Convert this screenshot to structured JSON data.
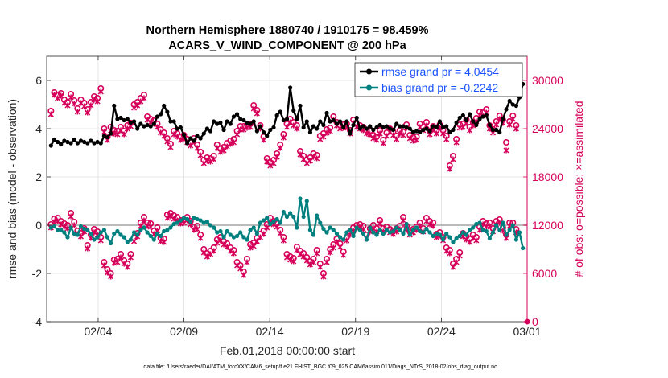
{
  "chart_data": {
    "type": "line",
    "title_line1": "Northern Hemisphere 1880740 / 1910175 = 98.459%",
    "title_line2": "ACARS_V_WIND_COMPONENT @ 200 hPa",
    "xlabel": "Feb.01,2018 00:00:00 start",
    "ylabel_left": "rmse and bias (model - observation)",
    "ylabel_right": "# of obs: o=possible; ×=assimilated",
    "footer": "data file: /Users/raeder/DAI/ATM_forcXX/CAM6_setup/f.e21.FHIST_BGC.f09_025.CAM6assim.011/Diags_NTrS_2018-02/obs_diag_output.nc",
    "xlim": [
      0.75,
      28.75
    ],
    "ylim_left": [
      -4,
      7
    ],
    "ylim_right": [
      0,
      33000
    ],
    "x_ticks": [
      3.75,
      8.75,
      13.75,
      18.75,
      23.75,
      28.75
    ],
    "x_tick_labels": [
      "02/04",
      "02/09",
      "02/14",
      "02/19",
      "02/24",
      "03/01"
    ],
    "y_ticks_left": [
      -4,
      -2,
      0,
      2,
      4,
      6
    ],
    "y_tick_labels_left": [
      "-4",
      "-2",
      "0",
      "2",
      "4",
      "6"
    ],
    "y_ticks_right": [
      0,
      6000,
      12000,
      18000,
      24000,
      30000
    ],
    "y_tick_labels_right": [
      "0",
      "6000",
      "12000",
      "18000",
      "24000",
      "30000"
    ],
    "colors": {
      "rmse": "#000000",
      "bias": "#00807f",
      "obs": "#d6005a",
      "legend_text": "#1a53ff",
      "zero_line": "#bbbbbb",
      "grid": "#e0e0e0"
    },
    "series": [
      {
        "name": "rmse grand pr = 4.0454",
        "values": [
          3.3,
          3.55,
          3.45,
          3.35,
          3.5,
          3.45,
          3.4,
          3.55,
          3.4,
          3.5,
          3.45,
          3.4,
          3.5,
          3.4,
          3.45,
          3.4,
          3.7,
          3.65,
          3.8,
          4.95,
          4.4,
          4.45,
          4.35,
          4.4,
          4.25,
          4.3,
          4.0,
          4.2,
          4.1,
          4.15,
          4.1,
          4.2,
          4.5,
          4.6,
          4.95,
          4.7,
          4.3,
          4.3,
          4.0,
          4.05,
          3.75,
          3.4,
          3.6,
          3.5,
          3.7,
          3.6,
          3.8,
          4.0,
          3.9,
          4.3,
          4.2,
          4.25,
          3.95,
          4.3,
          4.2,
          4.5,
          4.6,
          4.4,
          4.35,
          4.25,
          4.2,
          4.3,
          3.9,
          4.1,
          3.85,
          3.7,
          3.95,
          4.05,
          4.55,
          4.7,
          4.35,
          4.4,
          5.7,
          4.75,
          4.4,
          4.95,
          4.05,
          4.3,
          3.85,
          4.1,
          4.0,
          4.3,
          4.15,
          4.65,
          4.3,
          4.35,
          4.2,
          4.3,
          4.05,
          4.3,
          3.8,
          4.15,
          4.45,
          4.0,
          4.1,
          4.0,
          4.1,
          3.95,
          4.05,
          4.15,
          4.05,
          4.1,
          4.0,
          3.95,
          4.2,
          4.1,
          4.1,
          4.05,
          4.0,
          3.85,
          3.9,
          3.85,
          3.95,
          4.0,
          3.9,
          4.1,
          4.05,
          4.3,
          4.05,
          4.1,
          3.85,
          3.95,
          4.25,
          4.45,
          4.55,
          4.35,
          4.6,
          4.3,
          4.15,
          4.4,
          4.5,
          4.55,
          4.15,
          3.95,
          3.95,
          3.85,
          4.4,
          4.8,
          5.15,
          5.0,
          4.95,
          5.3,
          5.85
        ]
      },
      {
        "name": "bias grand pr = -0.2242",
        "values": [
          -0.1,
          -0.05,
          -0.2,
          -0.2,
          -0.3,
          -0.5,
          -0.1,
          -0.35,
          -0.4,
          -0.05,
          -0.15,
          -0.2,
          -0.35,
          -0.6,
          -0.5,
          -0.3,
          -0.2,
          -0.5,
          -0.75,
          -0.35,
          -0.25,
          -0.4,
          -0.5,
          -0.7,
          -0.6,
          -0.3,
          -0.4,
          -0.2,
          -0.1,
          -0.3,
          -0.45,
          -0.6,
          -0.35,
          -0.45,
          -0.25,
          -0.2,
          -0.1,
          0.05,
          0.1,
          0.2,
          0.3,
          0.25,
          0.15,
          0.3,
          0.25,
          0.2,
          0.1,
          0.15,
          0.0,
          -0.1,
          -0.3,
          -0.25,
          -0.5,
          -0.25,
          -0.4,
          -0.5,
          -0.45,
          -0.3,
          -0.5,
          -0.6,
          -0.2,
          -0.1,
          -0.35,
          0.1,
          0.2,
          0.3,
          0.05,
          0.15,
          0.25,
          0.1,
          0.55,
          0.35,
          0.5,
          0.35,
          -0.1,
          1.1,
          0.35,
          1.0,
          -0.2,
          -0.4,
          0.4,
          0.1,
          -0.15,
          -0.3,
          -0.1,
          -0.2,
          -0.35,
          -0.5,
          -0.6,
          -0.3,
          -0.2,
          -0.45,
          -0.1,
          -0.2,
          -0.35,
          -0.6,
          -0.1,
          -0.3,
          -0.4,
          -0.2,
          -0.35,
          -0.2,
          -0.3,
          -0.25,
          -0.1,
          -0.2,
          -0.35,
          0.05,
          -0.4,
          -0.2,
          -0.1,
          -0.25,
          -0.3,
          -0.15,
          -0.3,
          -0.45,
          -0.35,
          -0.4,
          -0.6,
          -0.35,
          -0.5,
          -0.7,
          -0.55,
          -0.45,
          -0.3,
          -0.4,
          -0.2,
          -0.1,
          0.05,
          0.1,
          -0.2,
          -0.25,
          -0.55,
          -0.3,
          0.0,
          -0.2,
          0.1,
          -0.4,
          -0.2,
          0.0,
          -0.6,
          -0.3,
          -0.95
        ]
      }
    ],
    "obs_possible": [
      26200,
      28500,
      28200,
      28400,
      27600,
      27300,
      28300,
      27500,
      26500,
      27600,
      27200,
      26400,
      27300,
      28000,
      27800,
      29000,
      24000,
      23000,
      24200,
      23800,
      23700,
      24200,
      23700,
      24400,
      24700,
      27000,
      27300,
      27800,
      28200,
      25500,
      25200,
      25000,
      24600,
      23900,
      23500,
      22800,
      22100,
      23700,
      23400,
      23000,
      23200,
      22700,
      22300,
      22800,
      22000,
      21100,
      20100,
      20400,
      20300,
      20600,
      22000,
      21500,
      21700,
      22200,
      22500,
      22700,
      23700,
      24300,
      24300,
      24500,
      24600,
      26900,
      26300,
      24400,
      23000,
      20300,
      19800,
      20100,
      20900,
      22000,
      23300,
      24600,
      25200,
      24800,
      24400,
      21200,
      20600,
      20100,
      20400,
      20900,
      20700,
      23100,
      23400,
      23900,
      24100,
      25500,
      24800,
      24400,
      24500,
      24600,
      23800,
      25100,
      24600,
      24400,
      24200,
      23800,
      23700,
      23200,
      23000,
      23800,
      22600,
      23500,
      24000,
      23600,
      23100,
      23800,
      23600,
      24500,
      23200,
      22900,
      23000,
      24600,
      24200,
      24800,
      23700,
      24300,
      23800,
      24500,
      23800,
      23100,
      19400,
      20600,
      22700,
      24500,
      24600,
      25100,
      24200,
      24800,
      25300,
      26100,
      26000,
      26400,
      24400,
      23900,
      24900,
      25600,
      25100,
      22300,
      24900,
      25600,
      24400
    ],
    "obs_assimilated": [
      25800,
      28200,
      27800,
      28100,
      27200,
      26900,
      27900,
      27100,
      26100,
      27200,
      26800,
      26000,
      26900,
      27600,
      27400,
      28600,
      23600,
      22600,
      23800,
      23400,
      23300,
      23800,
      23300,
      24000,
      24300,
      26600,
      26900,
      27400,
      27800,
      25100,
      24800,
      24600,
      24200,
      23500,
      23100,
      22400,
      21700,
      23300,
      23000,
      22600,
      22800,
      22300,
      21900,
      22400,
      21600,
      20700,
      19700,
      20000,
      19900,
      20200,
      21600,
      21100,
      21300,
      21800,
      22100,
      22300,
      23300,
      23900,
      23900,
      24100,
      24200,
      26500,
      25900,
      24000,
      22600,
      19900,
      19400,
      19700,
      20500,
      21600,
      22900,
      24200,
      24800,
      24400,
      24000,
      20800,
      20200,
      19700,
      20000,
      20500,
      20300,
      22700,
      23000,
      23500,
      23700,
      25100,
      24400,
      24000,
      24100,
      24200,
      23400,
      24700,
      24200,
      24000,
      23800,
      23400,
      23300,
      22800,
      22600,
      23400,
      22200,
      23100,
      23600,
      23200,
      22700,
      23400,
      23200,
      24100,
      22800,
      22500,
      22600,
      24200,
      23800,
      24400,
      23300,
      23900,
      23400,
      24100,
      23400,
      22700,
      19000,
      20200,
      22300,
      24100,
      24200,
      24700,
      23800,
      24400,
      24900,
      25700,
      25600,
      26000,
      24000,
      23500,
      24500,
      25200,
      24700,
      21300,
      24500,
      25200,
      24000
    ],
    "bias_obs_possible": [
      12100,
      12800,
      12900,
      12500,
      12200,
      12000,
      13500,
      12400,
      11300,
      11000,
      11600,
      9500,
      10800,
      11500,
      11200,
      10500,
      7400,
      6500,
      6000,
      7700,
      7800,
      8400,
      7600,
      7200,
      8400,
      10400,
      11000,
      12300,
      13000,
      12300,
      12200,
      11300,
      11700,
      10400,
      10300,
      13300,
      13500,
      13200,
      13000,
      12600,
      12700,
      13000,
      12500,
      11800,
      11900,
      10800,
      9000,
      8500,
      8800,
      9200,
      10200,
      10500,
      10000,
      9700,
      9200,
      8900,
      7400,
      7000,
      6200,
      7800,
      9600,
      9800,
      10400,
      10900,
      11300,
      12100,
      12900,
      12500,
      12200,
      11400,
      10500,
      8400,
      8100,
      7900,
      9300,
      8800,
      8500,
      8000,
      7500,
      7800,
      8900,
      7200,
      6000,
      7800,
      9000,
      9600,
      10300,
      9700,
      8700,
      10500,
      11200,
      11700,
      12000,
      12100,
      11900,
      10800,
      11600,
      12000,
      11600,
      12600,
      11600,
      11800,
      11500,
      11300,
      11600,
      11900,
      13000,
      11900,
      11200,
      11500,
      11800,
      12300,
      11600,
      12900,
      12500,
      12300,
      10900,
      11100,
      10500,
      9200,
      8900,
      7200,
      7800,
      8600,
      11000,
      10600,
      10300,
      10800,
      10500,
      11800,
      12500,
      12200,
      12300,
      11600,
      12500,
      12700,
      11700,
      10800,
      12300,
      12300,
      11500
    ],
    "bias_obs_assimilated": [
      11700,
      12400,
      12500,
      12100,
      11800,
      11600,
      13100,
      12000,
      10900,
      10600,
      11200,
      9100,
      10400,
      11100,
      10800,
      10100,
      7000,
      6100,
      5600,
      7300,
      7400,
      8000,
      7200,
      6800,
      8000,
      10000,
      10600,
      11900,
      12600,
      11900,
      11800,
      10900,
      11300,
      10000,
      9900,
      12900,
      13100,
      12800,
      12600,
      12200,
      12300,
      12600,
      12100,
      11400,
      11500,
      10400,
      8600,
      8100,
      8400,
      8800,
      9800,
      10100,
      9600,
      9300,
      8800,
      8500,
      7000,
      6600,
      5800,
      7400,
      9200,
      9400,
      10000,
      10500,
      10900,
      11700,
      12500,
      12100,
      11800,
      11000,
      10100,
      8000,
      7700,
      7500,
      8900,
      8400,
      8100,
      7600,
      7100,
      7400,
      8500,
      6800,
      5600,
      7400,
      8600,
      9200,
      9900,
      9300,
      8300,
      10100,
      10800,
      11300,
      11600,
      11700,
      11500,
      10400,
      11200,
      11600,
      11200,
      12200,
      11200,
      11400,
      11100,
      10900,
      11200,
      11500,
      12600,
      11500,
      10800,
      11100,
      11400,
      11900,
      11200,
      12500,
      12100,
      11900,
      10500,
      10700,
      10100,
      8800,
      8500,
      6800,
      7400,
      8200,
      10600,
      10200,
      9900,
      10400,
      10100,
      11400,
      12100,
      11800,
      11900,
      11200,
      12100,
      12300,
      11300,
      10400,
      11900,
      11900,
      11100
    ]
  }
}
